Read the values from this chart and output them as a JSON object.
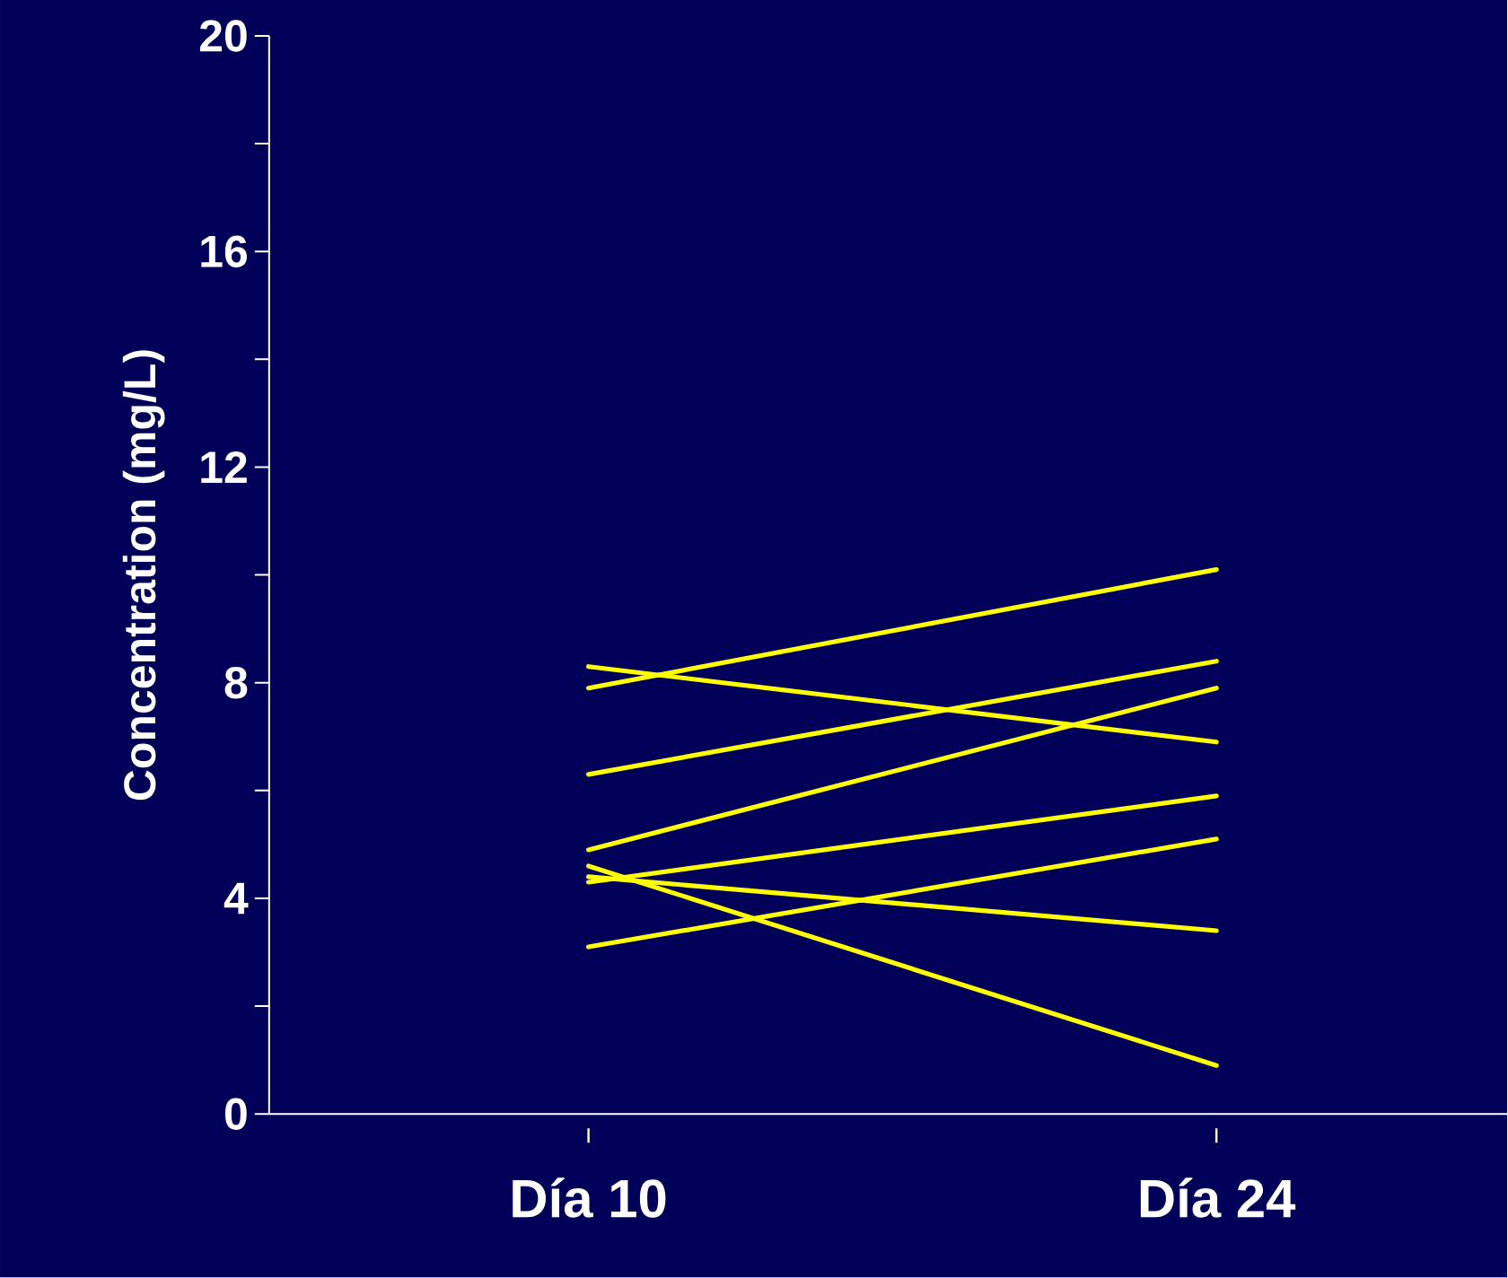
{
  "chart_data": {
    "type": "line",
    "ylabel": "Concentration (mg/L)",
    "categories": [
      "Día 10",
      "Día 24"
    ],
    "series": [
      {
        "color": "#ffff00",
        "values": [
          7.9,
          10.1
        ]
      },
      {
        "color": "#ffff00",
        "values": [
          8.3,
          6.9
        ]
      },
      {
        "color": "#ffff00",
        "values": [
          6.3,
          8.4
        ]
      },
      {
        "color": "#ffff00",
        "values": [
          4.9,
          7.9
        ]
      },
      {
        "color": "#ffff00",
        "values": [
          4.3,
          5.9
        ]
      },
      {
        "color": "#ffff00",
        "values": [
          4.4,
          3.4
        ]
      },
      {
        "color": "#ffff00",
        "values": [
          4.6,
          0.9
        ]
      },
      {
        "color": "#ffff00",
        "values": [
          3.1,
          5.1
        ]
      }
    ],
    "ylim": [
      0,
      20
    ],
    "yticks": [
      0,
      {
        "value": 2,
        "label": null
      },
      4,
      {
        "value": 6,
        "label": null
      },
      8,
      {
        "value": 10,
        "label": null
      },
      12,
      {
        "value": 14,
        "label": null
      },
      16,
      {
        "value": 18,
        "label": null
      },
      20
    ]
  }
}
